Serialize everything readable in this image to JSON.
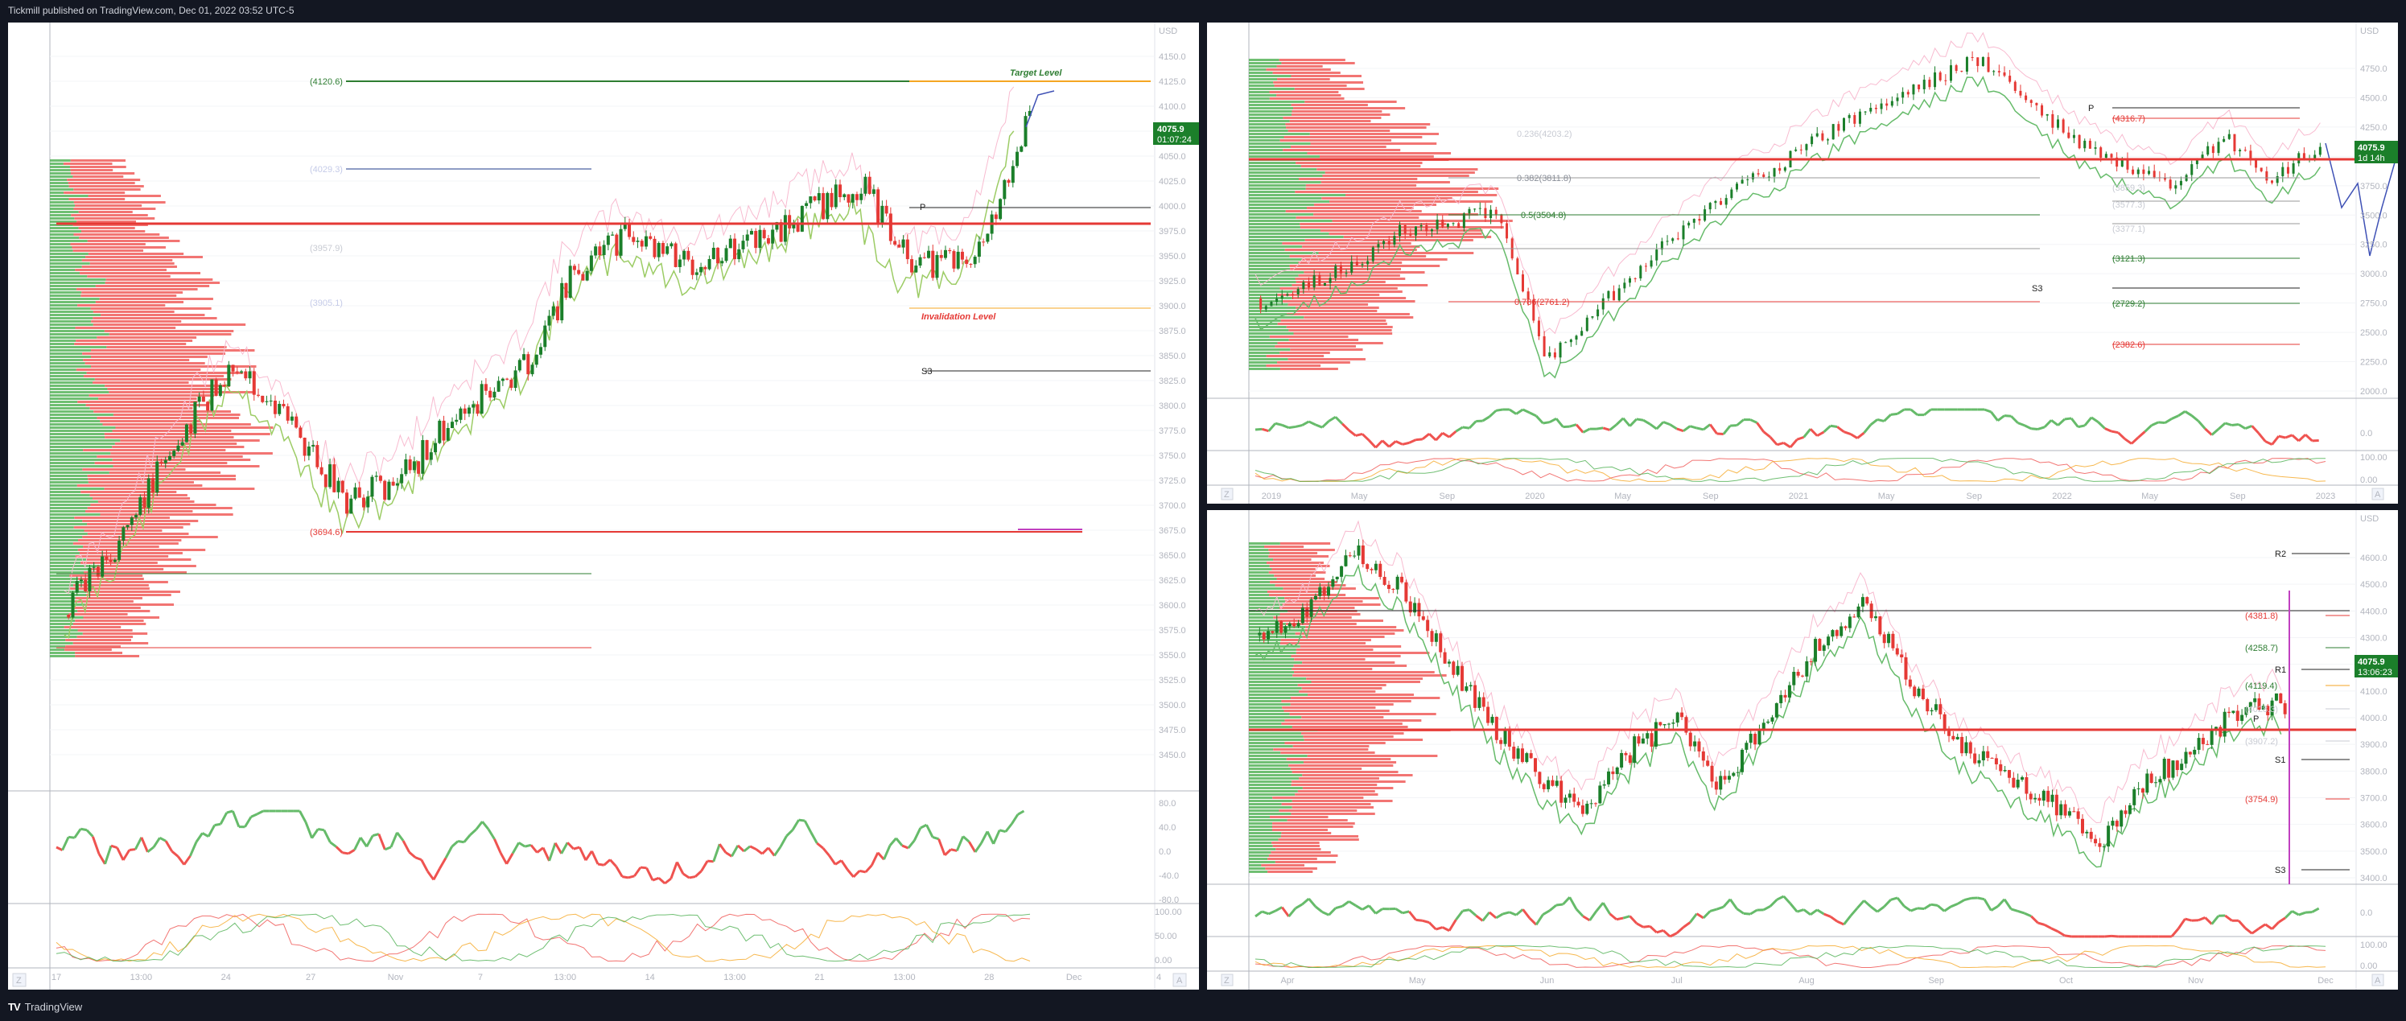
{
  "header": {
    "publish_line": "Tickmill published on TradingView.com, Dec 01, 2022 03:52 UTC-5"
  },
  "footer": {
    "brand": "TradingView"
  },
  "colors": {
    "up": "#2e7d32",
    "down": "#e53935",
    "bg": "#131722",
    "panel": "#ffffff",
    "price_badge": "#1b7f2a"
  },
  "main_chart": {
    "axis_unit": "USD",
    "y_ticks": [
      "4150.0",
      "4125.0",
      "4100.0",
      "4075.0",
      "4050.0",
      "4025.0",
      "4000.0",
      "3975.0",
      "3950.0",
      "3925.0",
      "3900.0",
      "3875.0",
      "3850.0",
      "3825.0",
      "3800.0",
      "3775.0",
      "3750.0",
      "3725.0",
      "3700.0",
      "3675.0",
      "3650.0",
      "3625.0",
      "3600.0",
      "3575.0",
      "3550.0",
      "3525.0",
      "3500.0",
      "3475.0",
      "3450.0"
    ],
    "x_ticks": [
      "17",
      "13:00",
      "24",
      "27",
      "Nov",
      "7",
      "13:00",
      "14",
      "13:00",
      "21",
      "13:00",
      "28",
      "Dec",
      "4"
    ],
    "price_badge": "4075.9",
    "countdown": "01:07:24",
    "target_label": "Target Level",
    "invalidation_label": "Invalidation Level",
    "levels": {
      "target": "(4120.6)",
      "l4029": "(4029.3)",
      "l3957": "(3957.9)",
      "l3905": "(3905.1)",
      "s3": "S3",
      "l3694": "(3694.6)",
      "pivot": "P"
    },
    "rsi_ticks": [
      "80.0",
      "40.0",
      "0.0",
      "-40.0",
      "-80.0"
    ],
    "stoch_ticks": [
      "100.00",
      "50.00",
      "0.00"
    ],
    "corner_left": "Z",
    "corner_right": "A"
  },
  "weekly_chart": {
    "axis_unit": "USD",
    "y_ticks": [
      "4750.0",
      "4500.0",
      "4250.0",
      "4000.0",
      "3750.0",
      "3500.0",
      "3250.0",
      "3000.0",
      "2750.0",
      "2500.0",
      "2250.0",
      "2000.0"
    ],
    "x_ticks": [
      "2019",
      "May",
      "Sep",
      "2020",
      "May",
      "Sep",
      "2021",
      "May",
      "Sep",
      "2022",
      "May",
      "Sep",
      "2023"
    ],
    "price_badge": "4075.9",
    "countdown": "1d 14h",
    "levels": {
      "fib382": "0.382(3811.8)",
      "fib5": "0.5(3504.8)",
      "fib786": "0.786(2761.2)",
      "l4316": "(4316.7)",
      "l3859": "(3859.3)",
      "l3577": "(3577.3)",
      "l3377": "(3377.1)",
      "l3121": "(3121.3)",
      "s3": "S3",
      "l2729": "(2729.2)",
      "l2382": "(2382.6)",
      "l4203": "0.236(4203.2)",
      "pivot": "P"
    },
    "rsi_ticks": [
      "0.0"
    ],
    "stoch_ticks": [
      "100.00",
      "0.00"
    ],
    "corner_left": "Z",
    "corner_right": "A"
  },
  "daily_chart": {
    "axis_unit": "USD",
    "y_ticks": [
      "4600.0",
      "4500.0",
      "4400.0",
      "4300.0",
      "4200.0",
      "4100.0",
      "4000.0",
      "3900.0",
      "3800.0",
      "3700.0",
      "3600.0",
      "3500.0",
      "3400.0"
    ],
    "x_ticks": [
      "Apr",
      "May",
      "Jun",
      "Jul",
      "Aug",
      "Sep",
      "Oct",
      "Nov",
      "Dec"
    ],
    "price_badge": "4075.9",
    "countdown": "13:06:23",
    "levels": {
      "r2": "R2",
      "l4381": "(4381.8)",
      "l4258": "(4258.7)",
      "r1": "R1",
      "l4119": "(4119.4)",
      "l4028": "(4028.3)",
      "l3907": "(3907.2)",
      "s1": "S1",
      "l3754": "(3754.9)",
      "s3": "S3",
      "pivot": "P"
    },
    "rsi_ticks": [
      "0.0"
    ],
    "stoch_ticks": [
      "100.00",
      "0.00"
    ],
    "corner_left": "Z",
    "corner_right": "A"
  }
}
